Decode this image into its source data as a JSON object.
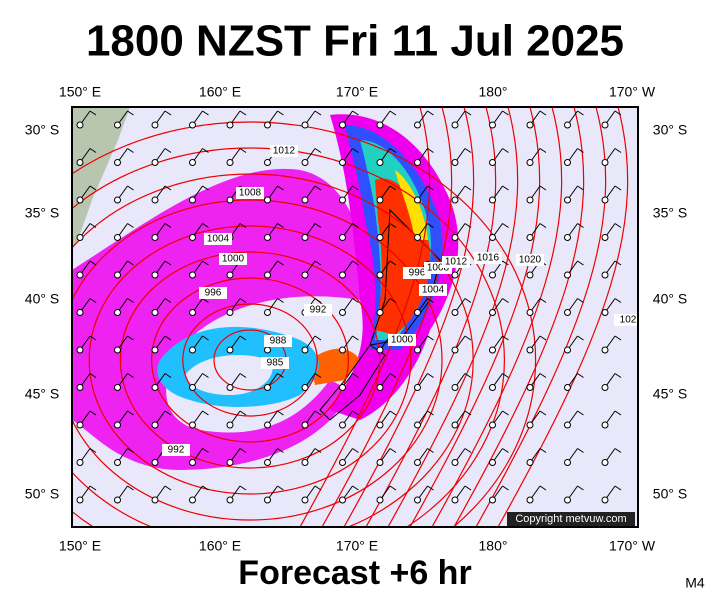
{
  "title": "1800 NZST Fri 11 Jul 2025",
  "subtitle": "Forecast +6 hr",
  "model": "M4",
  "copyright": "Copyright metvuw.com",
  "axes": {
    "top": [
      "150° E",
      "160° E",
      "170° E",
      "180°",
      "170° W"
    ],
    "bottom": [
      "150° E",
      "160° E",
      "170° E",
      "180°",
      "170° W"
    ],
    "left": [
      "30° S",
      "35° S",
      "40° S",
      "45° S",
      "50° S"
    ],
    "right": [
      "30° S",
      "35° S",
      "40° S",
      "45° S",
      "50° S"
    ]
  },
  "isobar_labels": [
    "1012",
    "1008",
    "1004",
    "1000",
    "996",
    "992",
    "988",
    "985",
    "996",
    "1000",
    "1004",
    "1008",
    "1012",
    "1016",
    "1020",
    "992",
    "102"
  ]
}
